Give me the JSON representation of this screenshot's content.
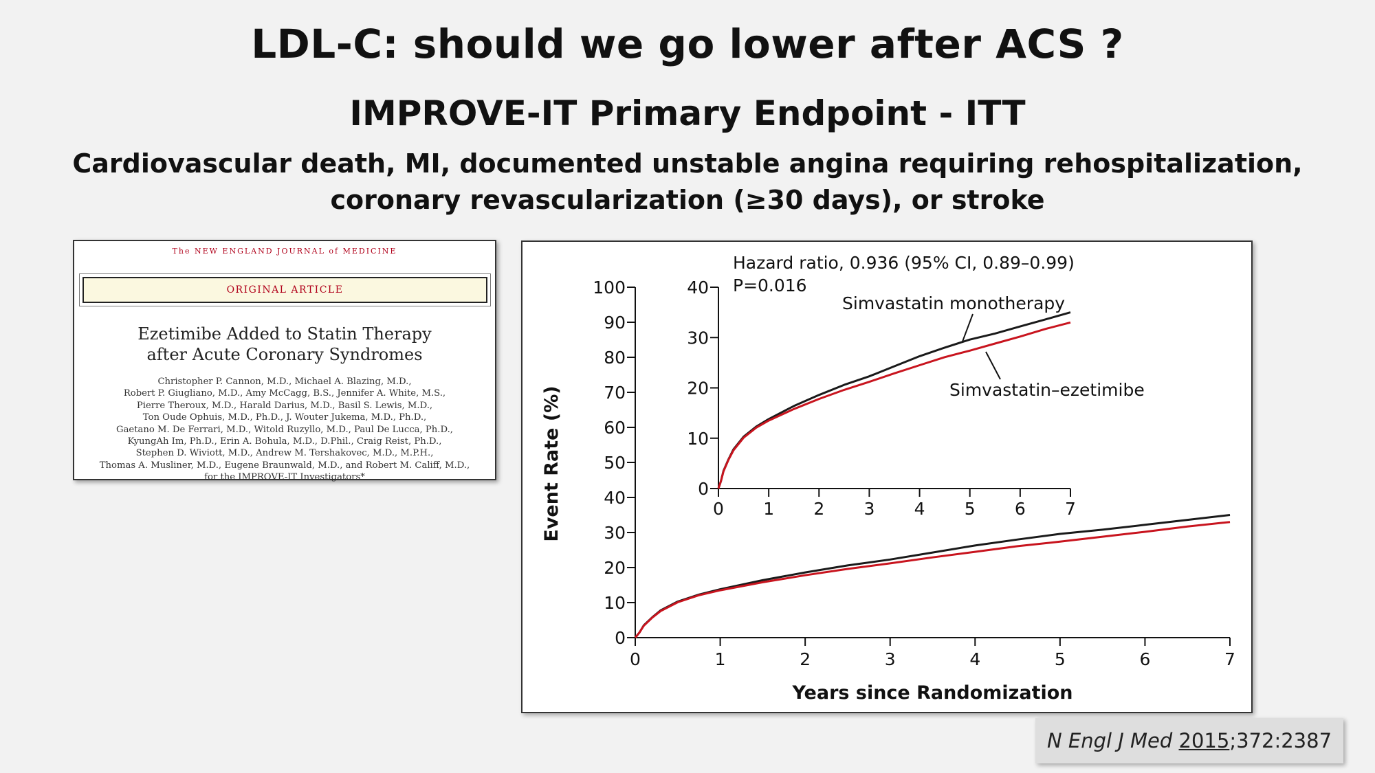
{
  "slide": {
    "title": "LDL-C: should we go lower after ACS ?",
    "subtitle": "IMPROVE-IT  Primary Endpoint - ITT",
    "description_line1": "Cardiovascular death, MI, documented unstable angina requiring rehospitalization,",
    "description_line2": "coronary revascularization (≥30 days), or stroke"
  },
  "article": {
    "journal": "The NEW ENGLAND JOURNAL of MEDICINE",
    "label": "ORIGINAL ARTICLE",
    "title_line1": "Ezetimibe Added to Statin Therapy",
    "title_line2": "after Acute Coronary Syndromes",
    "authors": [
      "Christopher P. Cannon, M.D., Michael A. Blazing, M.D.,",
      "Robert P. Giugliano, M.D., Amy McCagg, B.S., Jennifer A. White, M.S.,",
      "Pierre Theroux, M.D., Harald Darius, M.D., Basil S. Lewis, M.D.,",
      "Ton Oude Ophuis, M.D., Ph.D., J. Wouter Jukema, M.D., Ph.D.,",
      "Gaetano M. De Ferrari, M.D., Witold Ruzyllo, M.D., Paul De Lucca, Ph.D.,",
      "KyungAh Im, Ph.D., Erin A. Bohula, M.D., D.Phil., Craig Reist, Ph.D.,",
      "Stephen D. Wiviott, M.D., Andrew M. Tershakovec, M.D., M.P.H.,",
      "Thomas A. Musliner, M.D., Eugene Braunwald, M.D., and Robert M. Califf, M.D.,",
      "for the IMPROVE-IT Investigators*"
    ]
  },
  "reference": {
    "journal": "N Engl J Med",
    "year": "2015",
    "rest": ";372:2387"
  },
  "chart_data": {
    "type": "line",
    "xlabel": "Years since Randomization",
    "ylabel": "Event Rate (%)",
    "xlim": [
      0,
      7
    ],
    "ylim": [
      0,
      100
    ],
    "xticks": [
      0,
      1,
      2,
      3,
      4,
      5,
      6,
      7
    ],
    "yticks": [
      0,
      10,
      20,
      30,
      40,
      50,
      60,
      70,
      80,
      90,
      100
    ],
    "inset": {
      "xlim": [
        0,
        7
      ],
      "ylim": [
        0,
        40
      ],
      "xticks": [
        0,
        1,
        2,
        3,
        4,
        5,
        6,
        7
      ],
      "yticks": [
        0,
        10,
        20,
        30,
        40
      ]
    },
    "annotations": {
      "hr": "Hazard ratio, 0.936 (95% CI, 0.89–0.99)",
      "p": "P=0.016"
    },
    "series": [
      {
        "name": "Simvastatin monotherapy",
        "color": "#1a1a1a",
        "x": [
          0,
          0.05,
          0.1,
          0.2,
          0.3,
          0.5,
          0.75,
          1,
          1.5,
          2,
          2.5,
          3,
          3.5,
          4,
          4.5,
          5,
          5.5,
          6,
          6.5,
          7
        ],
        "y": [
          0,
          1.5,
          3.5,
          5.8,
          7.8,
          10.3,
          12.3,
          13.8,
          16.4,
          18.6,
          20.6,
          22.3,
          24.3,
          26.3,
          28.0,
          29.6,
          30.8,
          32.2,
          33.6,
          35.0
        ]
      },
      {
        "name": "Simvastatin–ezetimibe",
        "color": "#c8141e",
        "x": [
          0,
          0.05,
          0.1,
          0.2,
          0.3,
          0.5,
          0.75,
          1,
          1.5,
          2,
          2.5,
          3,
          3.5,
          4,
          4.5,
          5,
          5.5,
          6,
          6.5,
          7
        ],
        "y": [
          0,
          1.5,
          3.4,
          5.7,
          7.6,
          10.1,
          12.1,
          13.5,
          15.8,
          17.8,
          19.6,
          21.2,
          22.9,
          24.5,
          26.1,
          27.4,
          28.8,
          30.2,
          31.7,
          33.0
        ]
      }
    ]
  }
}
